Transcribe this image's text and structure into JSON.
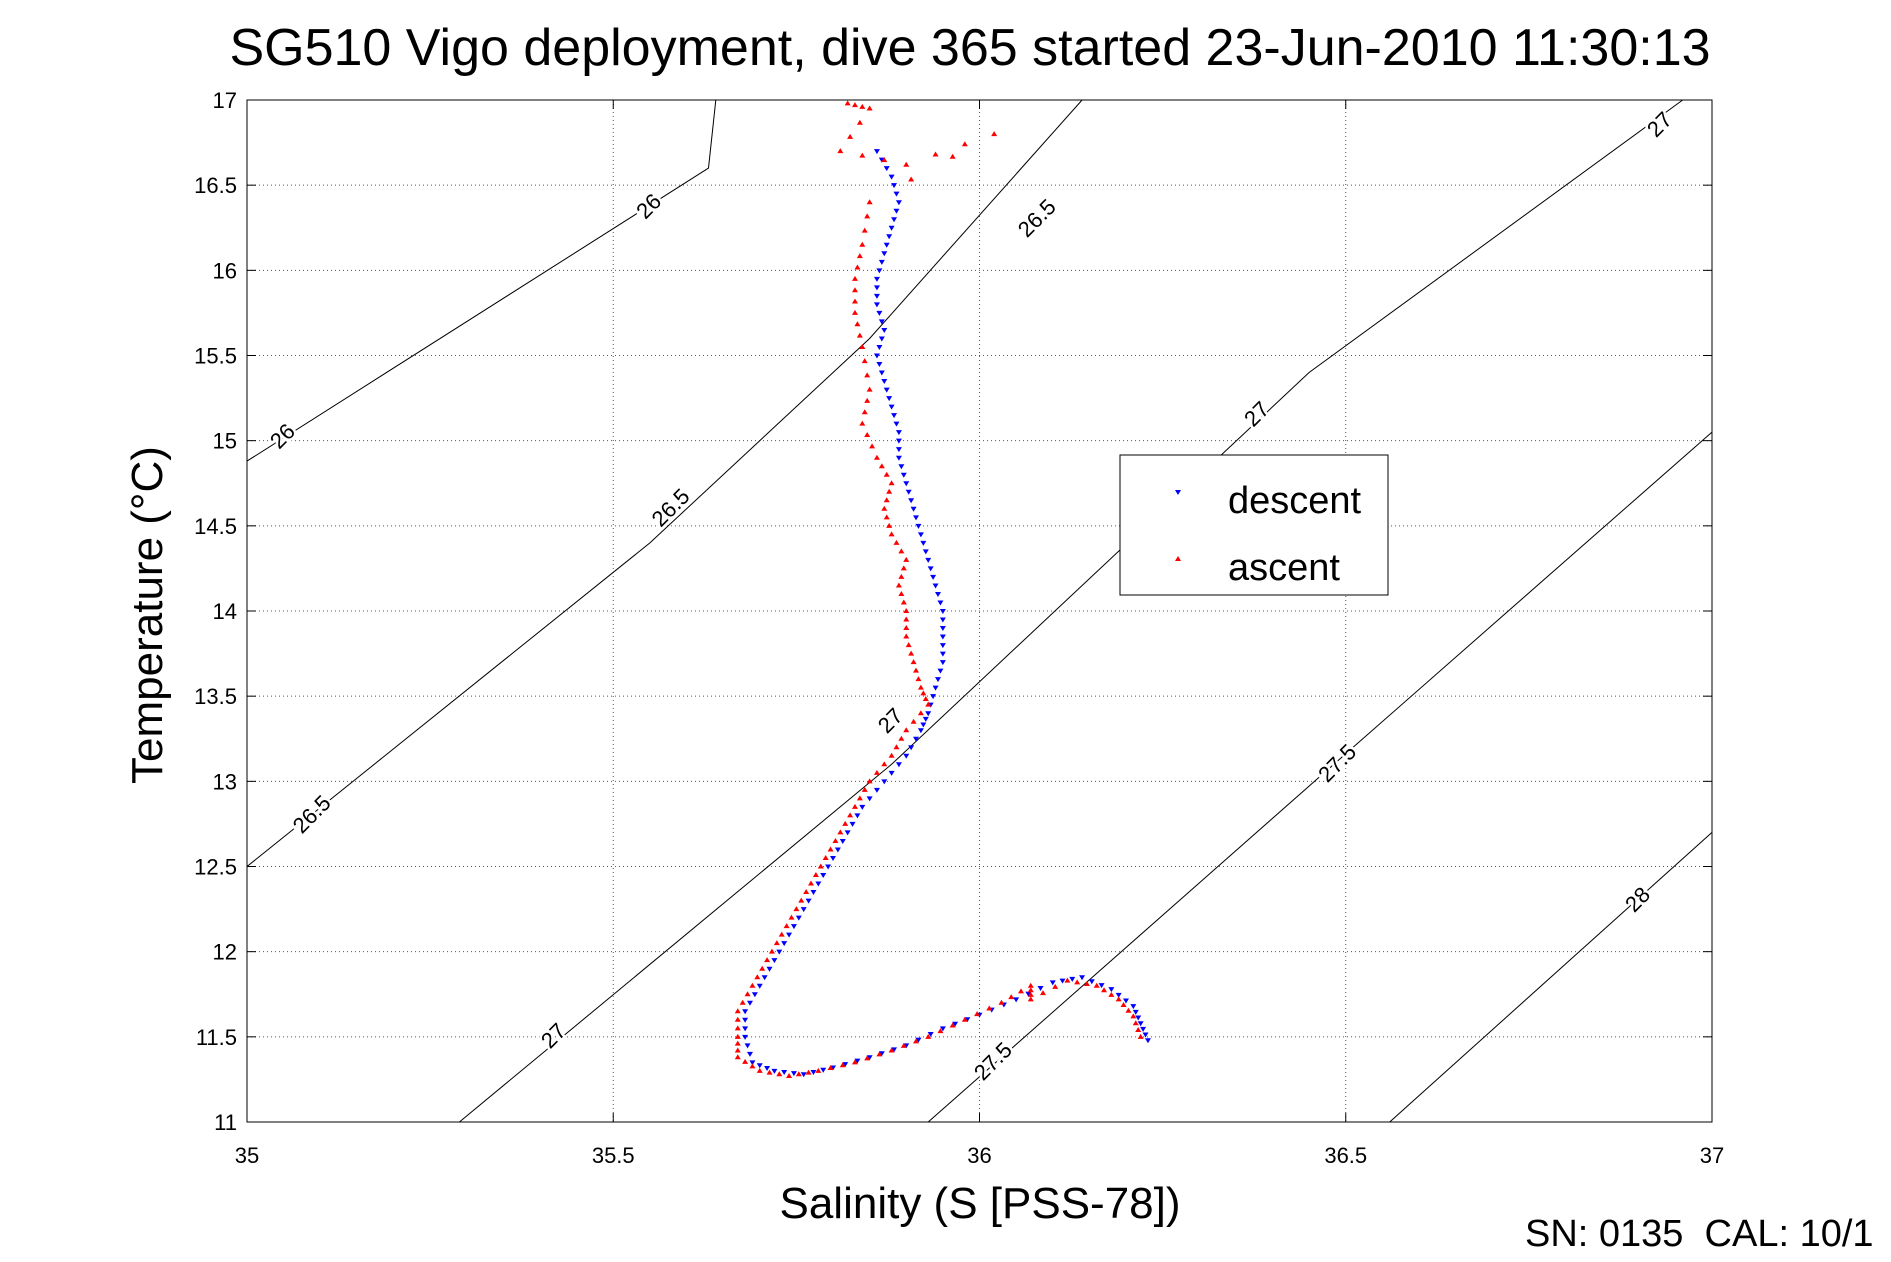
{
  "chart_data": {
    "type": "scatter",
    "title": "SG510 Vigo deployment, dive 365 started 23-Jun-2010 11:30:13",
    "xlabel": "Salinity (S [PSS-78])",
    "ylabel": "Temperature (°C)",
    "xlim": [
      35,
      37
    ],
    "ylim": [
      11,
      17
    ],
    "xticks": [
      "35",
      "35.5",
      "36",
      "36.5",
      "37"
    ],
    "yticks": [
      "11",
      "11.5",
      "12",
      "12.5",
      "13",
      "13.5",
      "14",
      "14.5",
      "15",
      "15.5",
      "16",
      "16.5",
      "17"
    ],
    "grid": true,
    "legend_position": "right-center",
    "footer": "SN: 0135  CAL: 10/1",
    "colors": {
      "descent": "#0000ff",
      "ascent": "#ff0000",
      "contour": "#000000"
    },
    "density_contours": [
      {
        "label": "26",
        "path": [
          [
            35.0,
            14.88
          ],
          [
            35.63,
            16.6
          ],
          [
            35.64,
            17.0
          ]
        ],
        "labels_at": [
          [
            35.05,
            15.02
          ],
          [
            35.55,
            16.37
          ]
        ]
      },
      {
        "label": "26.5",
        "path": [
          [
            35.0,
            12.5
          ],
          [
            35.55,
            14.4
          ],
          [
            35.85,
            15.6
          ],
          [
            36.14,
            17.0
          ]
        ],
        "labels_at": [
          [
            35.09,
            12.8
          ],
          [
            35.58,
            14.6
          ],
          [
            36.08,
            16.3
          ]
        ]
      },
      {
        "label": "27",
        "path": [
          [
            35.29,
            11.0
          ],
          [
            35.88,
            13.1
          ],
          [
            36.45,
            15.4
          ],
          [
            36.96,
            17.0
          ]
        ],
        "labels_at": [
          [
            35.42,
            11.5
          ],
          [
            35.88,
            13.35
          ],
          [
            36.38,
            15.15
          ],
          [
            36.93,
            16.85
          ]
        ]
      },
      {
        "label": "27.5",
        "path": [
          [
            35.93,
            11.0
          ],
          [
            36.51,
            13.2
          ],
          [
            37.0,
            15.05
          ]
        ],
        "labels_at": [
          [
            36.02,
            11.35
          ],
          [
            36.49,
            13.1
          ]
        ]
      },
      {
        "label": "28",
        "path": [
          [
            36.56,
            11.0
          ],
          [
            37.0,
            12.7
          ]
        ],
        "labels_at": [
          [
            36.9,
            12.3
          ]
        ]
      }
    ],
    "series": [
      {
        "name": "descent",
        "marker": "down-triangle",
        "color": "#0000ff",
        "points": [
          [
            35.86,
            16.7
          ],
          [
            35.88,
            16.55
          ],
          [
            35.89,
            16.4
          ],
          [
            35.88,
            16.25
          ],
          [
            35.87,
            16.1
          ],
          [
            35.86,
            15.95
          ],
          [
            35.86,
            15.8
          ],
          [
            35.87,
            15.65
          ],
          [
            35.86,
            15.5
          ],
          [
            35.87,
            15.35
          ],
          [
            35.88,
            15.2
          ],
          [
            35.89,
            15.05
          ],
          [
            35.89,
            14.9
          ],
          [
            35.9,
            14.75
          ],
          [
            35.91,
            14.6
          ],
          [
            35.92,
            14.45
          ],
          [
            35.93,
            14.3
          ],
          [
            35.94,
            14.15
          ],
          [
            35.95,
            14.0
          ],
          [
            35.95,
            13.85
          ],
          [
            35.95,
            13.7
          ],
          [
            35.94,
            13.55
          ],
          [
            35.93,
            13.4
          ],
          [
            35.92,
            13.3
          ],
          [
            35.9,
            13.15
          ],
          [
            35.87,
            13.0
          ],
          [
            35.84,
            12.85
          ],
          [
            35.82,
            12.7
          ],
          [
            35.8,
            12.55
          ],
          [
            35.78,
            12.4
          ],
          [
            35.76,
            12.25
          ],
          [
            35.74,
            12.1
          ],
          [
            35.72,
            11.95
          ],
          [
            35.7,
            11.8
          ],
          [
            35.68,
            11.65
          ],
          [
            35.68,
            11.5
          ],
          [
            35.69,
            11.35
          ],
          [
            35.72,
            11.3
          ],
          [
            35.76,
            11.28
          ],
          [
            35.8,
            11.32
          ],
          [
            35.85,
            11.38
          ],
          [
            35.9,
            11.45
          ],
          [
            35.95,
            11.55
          ],
          [
            36.0,
            11.63
          ],
          [
            36.05,
            11.72
          ],
          [
            36.1,
            11.82
          ],
          [
            36.14,
            11.85
          ],
          [
            36.18,
            11.78
          ],
          [
            36.21,
            11.68
          ],
          [
            36.22,
            11.58
          ],
          [
            36.23,
            11.48
          ]
        ]
      },
      {
        "name": "ascent",
        "marker": "up-triangle",
        "color": "#ff0000",
        "points": [
          [
            35.82,
            16.98
          ],
          [
            35.85,
            16.95
          ],
          [
            35.81,
            16.7
          ],
          [
            35.9,
            16.62
          ],
          [
            36.02,
            16.8
          ],
          [
            35.85,
            16.4
          ],
          [
            35.84,
            16.15
          ],
          [
            35.83,
            15.95
          ],
          [
            35.83,
            15.75
          ],
          [
            35.84,
            15.55
          ],
          [
            35.85,
            15.3
          ],
          [
            35.84,
            15.1
          ],
          [
            35.86,
            14.9
          ],
          [
            35.88,
            14.75
          ],
          [
            35.87,
            14.6
          ],
          [
            35.88,
            14.45
          ],
          [
            35.9,
            14.3
          ],
          [
            35.89,
            14.15
          ],
          [
            35.9,
            14.0
          ],
          [
            35.9,
            13.85
          ],
          [
            35.91,
            13.7
          ],
          [
            35.92,
            13.55
          ],
          [
            35.93,
            13.45
          ],
          [
            35.9,
            13.3
          ],
          [
            35.88,
            13.15
          ],
          [
            35.85,
            13.0
          ],
          [
            35.83,
            12.85
          ],
          [
            35.81,
            12.7
          ],
          [
            35.79,
            12.55
          ],
          [
            35.77,
            12.4
          ],
          [
            35.75,
            12.25
          ],
          [
            35.73,
            12.1
          ],
          [
            35.71,
            11.95
          ],
          [
            35.69,
            11.8
          ],
          [
            35.67,
            11.65
          ],
          [
            35.67,
            11.5
          ],
          [
            35.67,
            11.38
          ],
          [
            35.7,
            11.3
          ],
          [
            35.74,
            11.27
          ],
          [
            35.78,
            11.3
          ],
          [
            35.83,
            11.35
          ],
          [
            35.88,
            11.42
          ],
          [
            35.93,
            11.5
          ],
          [
            35.98,
            11.6
          ],
          [
            36.03,
            11.7
          ],
          [
            36.07,
            11.8
          ],
          [
            36.07,
            11.72
          ],
          [
            36.12,
            11.83
          ],
          [
            36.16,
            11.8
          ],
          [
            36.19,
            11.72
          ],
          [
            36.21,
            11.62
          ],
          [
            36.22,
            11.5
          ]
        ]
      }
    ]
  }
}
